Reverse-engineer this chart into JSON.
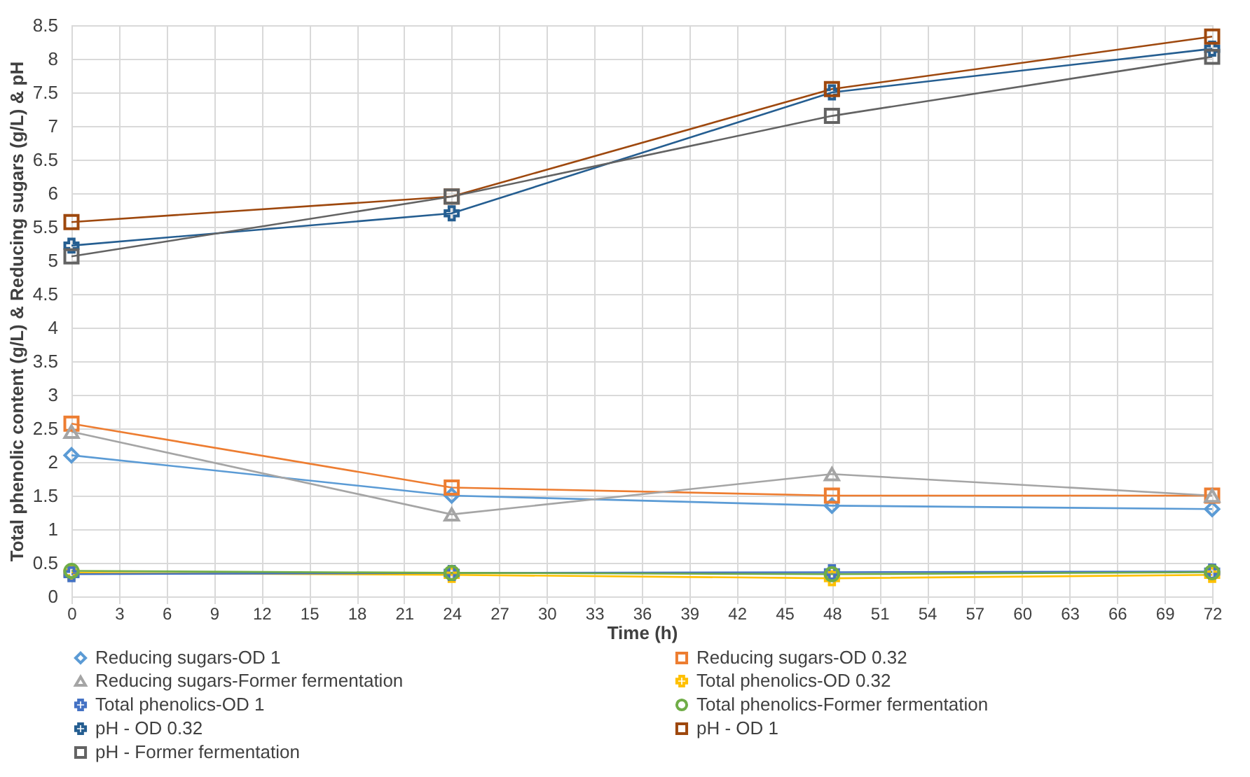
{
  "chart_data": {
    "type": "line",
    "xlabel": "Time (h)",
    "ylabel": "Total phenolic content  (g/L) &  Reducing sugars (g/L) &  pH",
    "x": [
      0,
      24,
      48,
      72
    ],
    "xlim": [
      0,
      72
    ],
    "xticks": [
      0,
      3,
      6,
      9,
      12,
      15,
      18,
      21,
      24,
      27,
      30,
      33,
      36,
      39,
      42,
      45,
      48,
      51,
      54,
      57,
      60,
      63,
      66,
      69,
      72
    ],
    "ylim": [
      0,
      8.5
    ],
    "yticks": [
      0,
      0.5,
      1,
      1.5,
      2,
      2.5,
      3,
      3.5,
      4,
      4.5,
      5,
      5.5,
      6,
      6.5,
      7,
      7.5,
      8,
      8.5
    ],
    "grid": true,
    "legend": "bottom",
    "line_style": "solid",
    "series": [
      {
        "name": "Reducing sugars-OD 1",
        "color": "#5b9bd5",
        "marker": "diamond",
        "values": [
          2.1,
          1.5,
          1.35,
          1.3
        ]
      },
      {
        "name": "Reducing sugars-OD 0.32",
        "color": "#ed7d31",
        "marker": "square",
        "values": [
          2.57,
          1.62,
          1.5,
          1.5
        ]
      },
      {
        "name": "Reducing sugars-Former fermentation",
        "color": "#a5a5a5",
        "marker": "triangle",
        "values": [
          2.45,
          1.22,
          1.82,
          1.5
        ]
      },
      {
        "name": "Total phenolics-OD 0.32",
        "color": "#ffc000",
        "marker": "cross",
        "values": [
          0.35,
          0.32,
          0.27,
          0.32
        ]
      },
      {
        "name": "Total phenolics-OD 1",
        "color": "#4472c4",
        "marker": "cross",
        "values": [
          0.33,
          0.35,
          0.36,
          0.37
        ]
      },
      {
        "name": "Total phenolics-Former fermentation",
        "color": "#70ad47",
        "marker": "circle",
        "values": [
          0.38,
          0.35,
          0.33,
          0.36
        ]
      },
      {
        "name": "pH - OD 0.32",
        "color": "#255e91",
        "marker": "cross",
        "values": [
          5.22,
          5.7,
          7.5,
          8.15
        ]
      },
      {
        "name": "pH - OD 1",
        "color": "#9e480e",
        "marker": "square",
        "values": [
          5.57,
          5.95,
          7.55,
          8.33
        ]
      },
      {
        "name": "pH - Former fermentation",
        "color": "#636363",
        "marker": "square",
        "values": [
          5.06,
          5.95,
          7.15,
          8.03
        ]
      }
    ]
  }
}
